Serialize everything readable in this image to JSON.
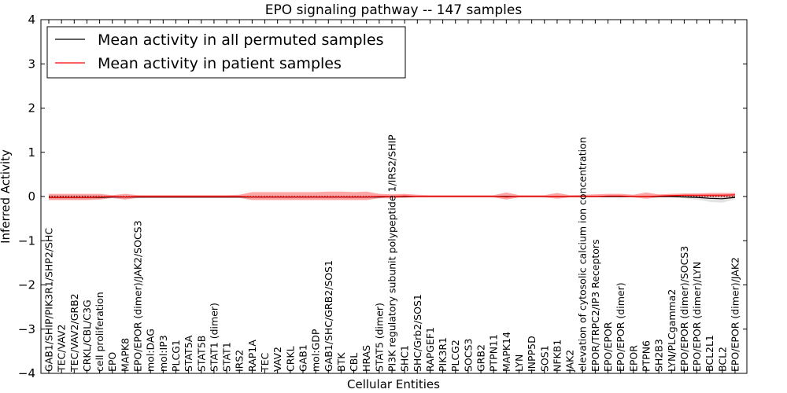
{
  "chart_data": {
    "type": "line",
    "title": "EPO signaling pathway -- 147 samples",
    "xlabel": "Cellular Entities",
    "ylabel": "Inferred Activity",
    "ylim": [
      -4,
      4
    ],
    "yticks": [
      -4,
      -3,
      -2,
      -1,
      0,
      1,
      2,
      3,
      4
    ],
    "ytick_labels": [
      "−4",
      "−3",
      "−2",
      "−1",
      "0",
      "1",
      "2",
      "3",
      "4"
    ],
    "grid": false,
    "legend_position": "top-left",
    "categories": [
      "GAB1/SHIP/PIK3R1/SHP2/SHC",
      "TEC/VAV2",
      "TEC/VAV2/GRB2",
      "CRKL/CBL/C3G",
      "cell proliferation",
      "EPO",
      "MAPK8",
      "EPO/EPOR (dimer)/JAK2/SOCS3",
      "mol:DAG",
      "mol:IP3",
      "PLCG1",
      "STAT5A",
      "STAT5B",
      "STAT1 (dimer)",
      "STAT1",
      "IRS2",
      "RAP1A",
      "TEC",
      "VAV2",
      "CRKL",
      "GAB1",
      "mol:GDP",
      "GAB1/SHC/GRB2/SOS1",
      "BTK",
      "CBL",
      "HRAS",
      "STAT5 (dimer)",
      "PI3K regulatory subunit polypeptide 1/IRS2/SHIP",
      "SHC1",
      "SHC/Grb2/SOS1",
      "RAPGEF1",
      "PIK3R1",
      "PLCG2",
      "SOCS3",
      "GRB2",
      "PTPN11",
      "MAPK14",
      "LYN",
      "INPP5D",
      "SOS1",
      "NFKB1",
      "JAK2",
      "elevation of cytosolic calcium ion concentration",
      "EPOR/TRPC2/IP3 Receptors",
      "EPO/EPOR",
      "EPO/EPOR (dimer)",
      "EPOR",
      "PTPN6",
      "SH2B3",
      "LYN/PLCgamma2",
      "EPO/EPOR (dimer)/SOCS3",
      "EPO/EPOR (dimer)/LYN",
      "BCL2L1",
      "BCL2",
      "EPO/EPOR (dimer)/JAK2"
    ],
    "series": [
      {
        "name": "Mean activity in all permuted samples",
        "color": "#000000",
        "values": [
          -0.02,
          -0.02,
          -0.02,
          -0.02,
          -0.02,
          -0.01,
          -0.01,
          -0.01,
          -0.01,
          -0.01,
          -0.01,
          -0.01,
          -0.01,
          -0.01,
          -0.01,
          -0.01,
          -0.01,
          -0.01,
          -0.01,
          -0.01,
          -0.01,
          -0.01,
          -0.01,
          -0.01,
          -0.01,
          -0.01,
          -0.01,
          0.0,
          0.0,
          0.0,
          0.0,
          0.0,
          0.0,
          0.0,
          0.0,
          0.0,
          0.0,
          0.0,
          0.0,
          0.0,
          0.0,
          0.0,
          0.0,
          0.0,
          0.0,
          0.0,
          0.0,
          0.0,
          0.0,
          0.0,
          -0.01,
          -0.02,
          -0.04,
          -0.05,
          -0.02
        ],
        "band": {
          "color": "#cccccc",
          "upper": [
            0.03,
            0.03,
            0.03,
            0.03,
            0.03,
            0.02,
            0.02,
            0.02,
            0.02,
            0.02,
            0.02,
            0.02,
            0.02,
            0.02,
            0.02,
            0.02,
            0.02,
            0.02,
            0.02,
            0.02,
            0.02,
            0.02,
            0.02,
            0.02,
            0.02,
            0.02,
            0.02,
            0.01,
            0.01,
            0.01,
            0.01,
            0.01,
            0.01,
            0.01,
            0.01,
            0.01,
            0.01,
            0.01,
            0.01,
            0.01,
            0.01,
            0.01,
            0.01,
            0.01,
            0.01,
            0.01,
            0.01,
            0.01,
            0.01,
            0.01,
            0.02,
            0.03,
            0.05,
            0.05,
            0.03
          ],
          "lower": [
            -0.06,
            -0.06,
            -0.06,
            -0.06,
            -0.05,
            -0.04,
            -0.04,
            -0.04,
            -0.03,
            -0.03,
            -0.03,
            -0.03,
            -0.03,
            -0.03,
            -0.03,
            -0.03,
            -0.04,
            -0.04,
            -0.04,
            -0.04,
            -0.04,
            -0.04,
            -0.04,
            -0.04,
            -0.04,
            -0.04,
            -0.03,
            -0.02,
            -0.02,
            -0.02,
            -0.02,
            -0.02,
            -0.02,
            -0.02,
            -0.02,
            -0.02,
            -0.02,
            -0.02,
            -0.02,
            -0.02,
            -0.02,
            -0.02,
            -0.02,
            -0.02,
            -0.02,
            -0.02,
            -0.02,
            -0.02,
            -0.02,
            -0.02,
            -0.04,
            -0.07,
            -0.12,
            -0.14,
            -0.06
          ]
        }
      },
      {
        "name": "Mean activity in patient samples",
        "color": "#ff0000",
        "values": [
          -0.02,
          -0.02,
          -0.02,
          -0.02,
          -0.01,
          0.0,
          -0.01,
          0.0,
          0.0,
          0.0,
          0.0,
          0.0,
          0.0,
          0.0,
          0.0,
          0.0,
          -0.01,
          -0.01,
          -0.01,
          -0.01,
          -0.01,
          -0.01,
          -0.01,
          -0.01,
          -0.01,
          -0.01,
          0.0,
          0.0,
          0.01,
          0.0,
          0.0,
          0.0,
          0.0,
          0.0,
          0.0,
          0.0,
          -0.01,
          0.0,
          0.0,
          0.0,
          0.0,
          0.0,
          0.0,
          0.0,
          0.01,
          0.01,
          0.0,
          0.0,
          0.01,
          0.02,
          0.03,
          0.03,
          0.03,
          0.03,
          0.04
        ],
        "band": {
          "color": "#ff0000",
          "upper": [
            0.06,
            0.06,
            0.06,
            0.06,
            0.06,
            0.03,
            0.06,
            0.03,
            0.03,
            0.03,
            0.03,
            0.03,
            0.03,
            0.03,
            0.03,
            0.04,
            0.1,
            0.1,
            0.1,
            0.1,
            0.1,
            0.1,
            0.11,
            0.11,
            0.1,
            0.11,
            0.06,
            0.05,
            0.06,
            0.04,
            0.03,
            0.03,
            0.03,
            0.03,
            0.03,
            0.03,
            0.09,
            0.03,
            0.03,
            0.03,
            0.08,
            0.03,
            0.04,
            0.05,
            0.06,
            0.06,
            0.04,
            0.09,
            0.05,
            0.06,
            0.07,
            0.07,
            0.08,
            0.08,
            0.08
          ],
          "lower": [
            -0.08,
            -0.08,
            -0.08,
            -0.08,
            -0.07,
            -0.03,
            -0.07,
            -0.03,
            -0.03,
            -0.03,
            -0.03,
            -0.03,
            -0.03,
            -0.03,
            -0.03,
            -0.03,
            -0.08,
            -0.08,
            -0.08,
            -0.08,
            -0.08,
            -0.08,
            -0.08,
            -0.08,
            -0.08,
            -0.08,
            -0.04,
            -0.04,
            -0.03,
            -0.02,
            -0.02,
            -0.02,
            -0.02,
            -0.02,
            -0.02,
            -0.02,
            -0.07,
            -0.02,
            -0.02,
            -0.02,
            -0.05,
            -0.02,
            -0.02,
            -0.02,
            -0.02,
            -0.02,
            -0.02,
            -0.05,
            -0.02,
            -0.02,
            -0.02,
            -0.02,
            -0.02,
            -0.02,
            -0.02
          ]
        }
      }
    ],
    "baseline": {
      "value": 0,
      "style": "dotted",
      "color": "#000000"
    }
  }
}
